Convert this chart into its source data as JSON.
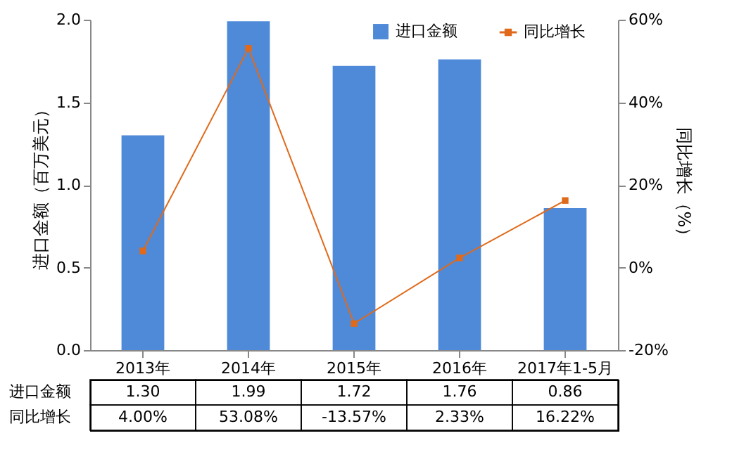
{
  "chart_data": {
    "type": "bar",
    "categories": [
      "2013年",
      "2014年",
      "2015年",
      "2016年",
      "2017年1-5月"
    ],
    "ylabel": "进口金额（百万美元）",
    "y2label": "同比增长（%）",
    "ylim": [
      0,
      2
    ],
    "yticks": [
      {
        "value": 0,
        "label": "0.0"
      },
      {
        "value": 0.5,
        "label": "0.5"
      },
      {
        "value": 1,
        "label": "1.0"
      },
      {
        "value": 1.5,
        "label": "1.5"
      },
      {
        "value": 2,
        "label": "2.0"
      }
    ],
    "y2lim": [
      -20,
      60
    ],
    "y2ticks": [
      {
        "value": -20,
        "label": "-20%"
      },
      {
        "value": 0,
        "label": "0%"
      },
      {
        "value": 20,
        "label": "20%"
      },
      {
        "value": 40,
        "label": "40%"
      },
      {
        "value": 60,
        "label": "60%"
      }
    ],
    "legend": "top right",
    "marker": "square",
    "line_style": "solid",
    "series": [
      {
        "name": "进口金额",
        "color": "#4f8ad8",
        "values": [
          1.3,
          1.99,
          1.72,
          1.76,
          0.86
        ],
        "value_labels": [
          "1.30",
          "1.99",
          "1.72",
          "1.76",
          "0.86"
        ]
      },
      {
        "name": "同比增长",
        "type": "line",
        "axis": "y2",
        "color": "#e06a1b",
        "values": [
          4.0,
          53.08,
          -13.57,
          2.33,
          16.22
        ],
        "value_labels": [
          "4.00%",
          "53.08%",
          "-13.57%",
          "2.33%",
          "16.22%"
        ]
      }
    ]
  }
}
